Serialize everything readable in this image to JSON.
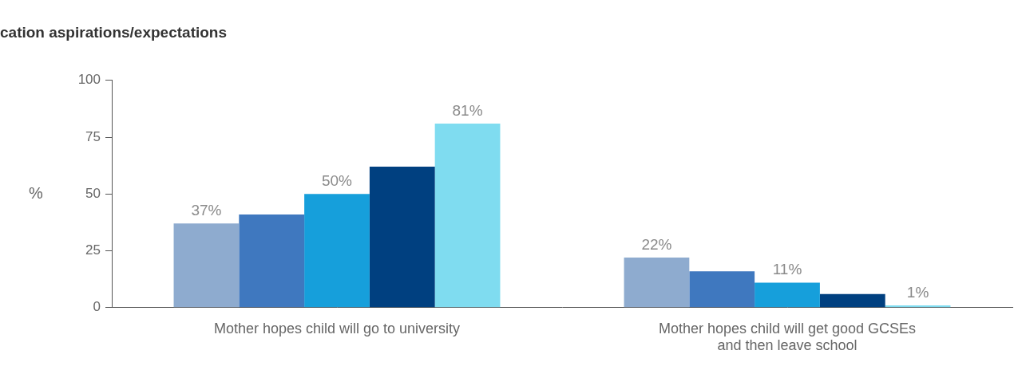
{
  "chart_data": {
    "type": "bar",
    "title": "cation aspirations/expectations",
    "y_label": "%",
    "categories": [
      "Mother hopes child will go to university",
      [
        "Mother hopes child will get good GCSEs",
        "and then leave school"
      ]
    ],
    "series": [
      {
        "color": "#8eabcf",
        "values": [
          37,
          22
        ],
        "value_labels": [
          "37%",
          "22%"
        ],
        "data_labels": true
      },
      {
        "color": "#3f78bf",
        "values": [
          41,
          16
        ],
        "data_labels": false
      },
      {
        "color": "#169fdb",
        "values": [
          50,
          11
        ],
        "value_labels": [
          "50%",
          "11%"
        ],
        "data_labels": true
      },
      {
        "color": "#004080",
        "values": [
          62,
          6
        ],
        "data_labels": false
      },
      {
        "color": "#7fdcf0",
        "values": [
          81,
          1
        ],
        "value_labels": [
          "81%",
          "1%"
        ],
        "data_labels": true
      }
    ],
    "ylim": [
      0,
      100
    ],
    "yticks": [
      0,
      25,
      50,
      75,
      100
    ],
    "grid": false
  }
}
